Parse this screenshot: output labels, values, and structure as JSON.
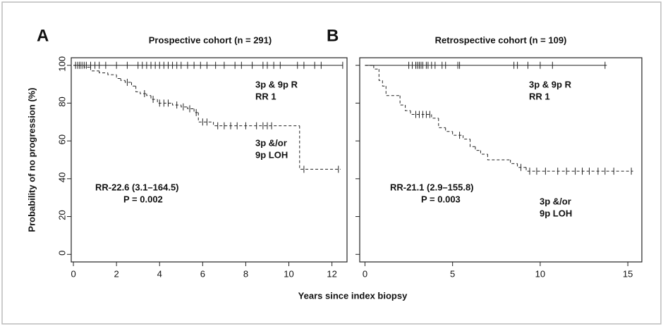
{
  "ylabel": "Probability of no progression (%)",
  "xlabel": "Years since index biopsy",
  "chart_data": [
    {
      "type": "step",
      "letter": "A",
      "title": "Prospective cohort (n = 291)",
      "xlim": [
        -0.1,
        12.7
      ],
      "ylim": [
        -4,
        104
      ],
      "xticks": [
        0,
        2,
        4,
        6,
        8,
        10,
        12
      ],
      "yticks": [
        0,
        20,
        40,
        60,
        80,
        100
      ],
      "series": [
        {
          "dash": false,
          "x": [
            0,
            12.5
          ],
          "values": [
            100,
            100
          ],
          "censor_x": [
            0.3,
            0.5,
            0.6,
            0.8,
            1.0,
            1.2,
            1.5,
            2.0,
            2.5,
            3.0,
            3.2,
            3.4,
            3.6,
            3.8,
            4.0,
            4.2,
            4.4,
            4.6,
            4.8,
            5.0,
            5.3,
            5.6,
            5.9,
            6.2,
            6.6,
            7.0,
            7.5,
            7.8,
            8.3,
            8.8,
            9.0,
            9.3,
            9.6,
            10.4,
            10.7,
            11.2,
            11.5,
            12.5
          ],
          "censor_values": [
            100,
            100,
            100,
            100,
            100,
            100,
            100,
            100,
            100,
            100,
            100,
            100,
            100,
            100,
            100,
            100,
            100,
            100,
            100,
            100,
            100,
            100,
            100,
            100,
            100,
            100,
            100,
            100,
            100,
            100,
            100,
            100,
            100,
            100,
            100,
            100,
            100,
            100
          ]
        },
        {
          "dash": true,
          "x": [
            0,
            0.5,
            0.8,
            1.2,
            1.6,
            2.0,
            2.2,
            2.4,
            2.7,
            2.9,
            3.1,
            3.4,
            3.6,
            3.9,
            4.6,
            5.0,
            5.3,
            5.6,
            5.8,
            6.5,
            10.5,
            12.4
          ],
          "values": [
            100,
            99,
            97,
            96,
            95,
            93,
            92,
            91,
            89,
            86,
            85,
            84,
            82,
            80,
            79,
            78,
            77,
            75,
            70,
            68,
            45,
            45
          ],
          "censor_x": [
            0.1,
            0.2,
            0.3,
            0.4,
            2.5,
            3.3,
            3.7,
            4.0,
            4.2,
            4.4,
            4.8,
            5.1,
            5.4,
            5.7,
            6.0,
            6.2,
            6.7,
            7.0,
            7.3,
            7.6,
            8.0,
            8.5,
            8.8,
            9.0,
            9.2,
            10.7,
            12.3
          ],
          "censor_values": [
            100,
            100,
            100,
            100,
            91,
            85,
            82,
            80,
            80,
            80,
            79,
            78,
            77,
            75,
            70,
            70,
            68,
            68,
            68,
            68,
            68,
            68,
            68,
            68,
            68,
            45,
            45
          ]
        }
      ],
      "annotations": [
        "3p & 9p R",
        "RR 1",
        "3p &/or",
        "9p LOH",
        "RR-22.6 (3.1–164.5)",
        "P = 0.002"
      ]
    },
    {
      "type": "step",
      "letter": "B",
      "title": "Retrospective cohort (n = 109)",
      "xlim": [
        -0.3,
        15.8
      ],
      "ylim": [
        -4,
        104
      ],
      "xticks": [
        0,
        5,
        10,
        15
      ],
      "yticks": [
        0,
        20,
        40,
        60,
        80,
        100
      ],
      "series": [
        {
          "dash": false,
          "x": [
            0,
            13.8
          ],
          "values": [
            100,
            100
          ],
          "censor_x": [
            2.5,
            2.7,
            2.9,
            3.0,
            3.1,
            3.2,
            3.3,
            3.5,
            3.6,
            3.8,
            4.0,
            4.4,
            4.6,
            5.3,
            5.4,
            8.5,
            8.7,
            9.3,
            10.0,
            10.7,
            13.7
          ],
          "censor_values": [
            100,
            100,
            100,
            100,
            100,
            100,
            100,
            100,
            100,
            100,
            100,
            100,
            100,
            100,
            100,
            100,
            100,
            100,
            100,
            100,
            100
          ]
        },
        {
          "dash": true,
          "x": [
            0,
            0.5,
            0.8,
            1.0,
            1.2,
            2.0,
            2.3,
            2.6,
            3.8,
            4.2,
            4.6,
            5.0,
            5.6,
            6.0,
            6.3,
            6.6,
            7.0,
            8.3,
            8.7,
            9.2,
            15.3
          ],
          "values": [
            100,
            98,
            92,
            89,
            84,
            79,
            76,
            74,
            72,
            67,
            65,
            63,
            61,
            57,
            55,
            53,
            50,
            48,
            46,
            44,
            44
          ],
          "censor_x": [
            2.9,
            3.1,
            3.3,
            3.5,
            3.7,
            5.4,
            8.9,
            9.4,
            9.8,
            10.3,
            11.0,
            11.5,
            12.0,
            12.4,
            12.8,
            13.3,
            13.7,
            14.2,
            15.2
          ],
          "censor_values": [
            74,
            74,
            74,
            74,
            74,
            63,
            46,
            44,
            44,
            44,
            44,
            44,
            44,
            44,
            44,
            44,
            44,
            44,
            44
          ]
        }
      ],
      "annotations": [
        "3p & 9p R",
        "RR 1",
        "RR-21.1 (2.9–155.8)",
        "P = 0.003",
        "3p &/or",
        "9p LOH"
      ]
    }
  ]
}
